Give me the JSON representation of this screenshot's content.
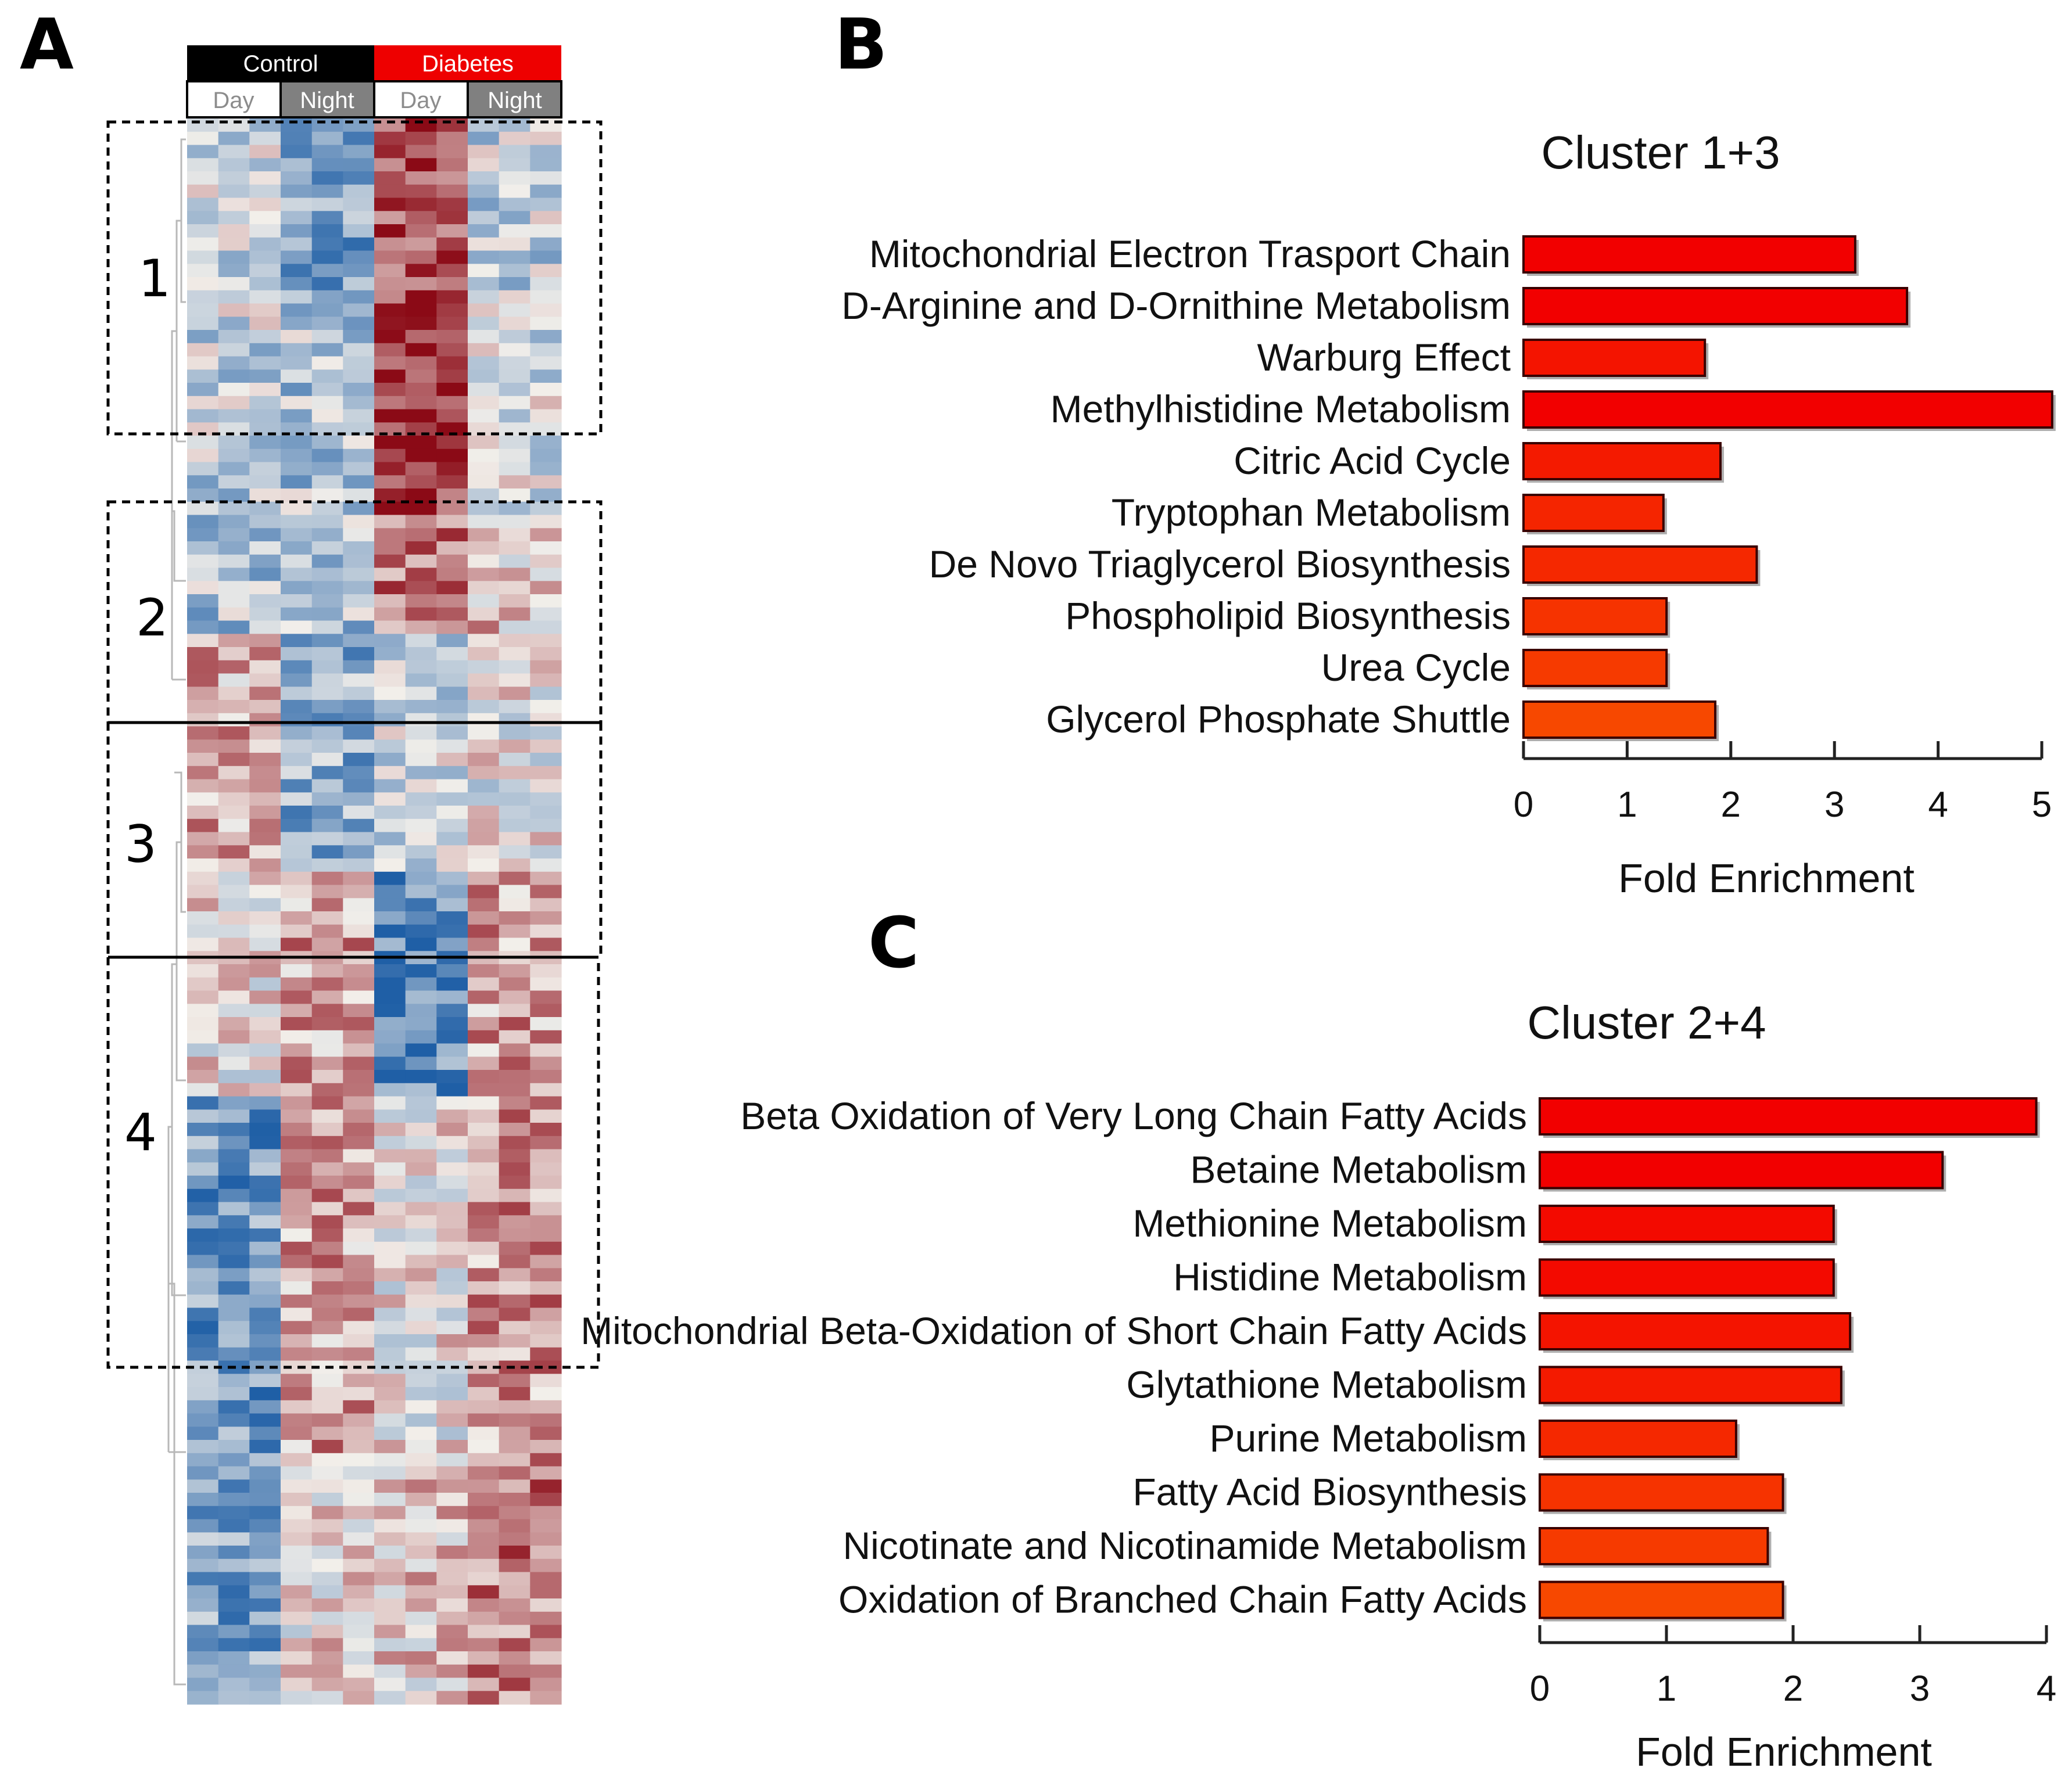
{
  "figure": {
    "panel_letters": [
      "A",
      "B",
      "C"
    ]
  },
  "heatmap": {
    "groups": [
      {
        "label": "Control",
        "color": "#000000",
        "text_color": "#ffffff"
      },
      {
        "label": "Diabetes",
        "color": "#ee0000",
        "text_color": "#ffffff"
      }
    ],
    "conditions": [
      {
        "label": "Day",
        "color": "#ffffff",
        "text_color": "#8c8c8c"
      },
      {
        "label": "Night",
        "color": "#808080",
        "text_color": "#ffffff"
      },
      {
        "label": "Day",
        "color": "#ffffff",
        "text_color": "#8c8c8c"
      },
      {
        "label": "Night",
        "color": "#808080",
        "text_color": "#ffffff"
      }
    ],
    "clusters": [
      "1",
      "2",
      "3",
      "4"
    ],
    "colors": {
      "low": "#1f5fa6",
      "mid": "#f2efea",
      "high": "#8b0a16"
    }
  },
  "chart_data": [
    {
      "type": "bar",
      "orientation": "horizontal",
      "title": "Cluster 1+3",
      "xlabel": "Fold Enrichment",
      "ylabel": "",
      "xlim": [
        0,
        5
      ],
      "xticks": [
        "0",
        "1",
        "2",
        "3",
        "4",
        "5"
      ],
      "categories": [
        "Mitochondrial Electron Trasport Chain",
        "D-Arginine and D-Ornithine Metabolism",
        "Warburg Effect",
        "Methylhistidine Metabolism",
        "Citric Acid Cycle",
        "Tryptophan Metabolism",
        "De Novo Triaglycerol Biosynthesis",
        "Phospholipid Biosynthesis",
        "Urea Cycle",
        "Glycerol Phosphate Shuttle"
      ],
      "values": [
        3.2,
        3.7,
        1.75,
        5.1,
        1.9,
        1.35,
        2.25,
        1.38,
        1.38,
        1.85
      ],
      "bar_colors": [
        "#f20000",
        "#f20000",
        "#f41400",
        "#f20000",
        "#f41a00",
        "#f52500",
        "#f52800",
        "#f63300",
        "#f63a00",
        "#f74800"
      ]
    },
    {
      "type": "bar",
      "orientation": "horizontal",
      "title": "Cluster 2+4",
      "xlabel": "Fold Enrichment",
      "ylabel": "",
      "xlim": [
        0,
        4
      ],
      "xticks": [
        "0",
        "1",
        "2",
        "3",
        "4"
      ],
      "categories": [
        "Beta Oxidation of Very Long Chain Fatty Acids",
        "Betaine Metabolism",
        "Methionine Metabolism",
        "Histidine Metabolism",
        "Mitochondrial Beta-Oxidation of Short Chain Fatty Acids",
        "Glytathione Metabolism",
        "Purine Metabolism",
        "Fatty Acid Biosynthesis",
        "Nicotinate and Nicotinamide Metabolism",
        "Oxidation of Branched Chain Fatty Acids"
      ],
      "values": [
        3.92,
        3.18,
        2.32,
        2.32,
        2.45,
        2.38,
        1.55,
        1.92,
        1.8,
        1.92
      ],
      "bar_colors": [
        "#f20000",
        "#f20000",
        "#f30a00",
        "#f30a00",
        "#f41400",
        "#f41a00",
        "#f52800",
        "#f63300",
        "#f63a00",
        "#f74800"
      ]
    }
  ]
}
